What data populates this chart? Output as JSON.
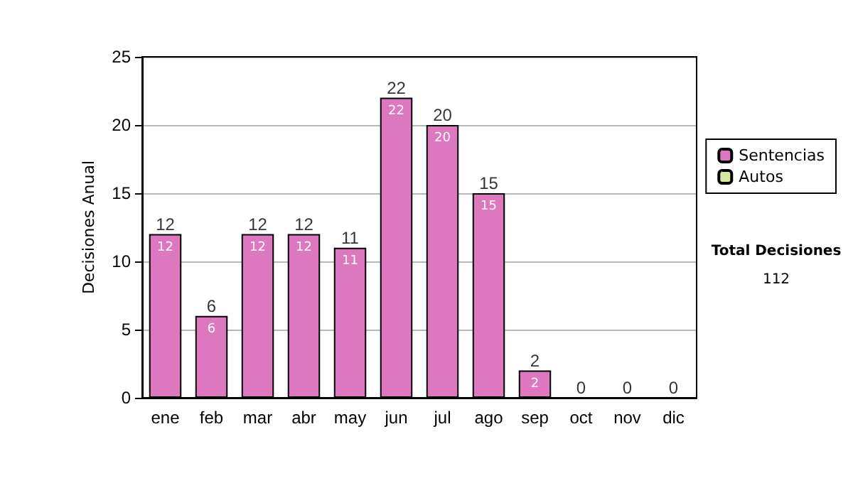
{
  "chart_data": {
    "type": "bar",
    "stacked": true,
    "ylabel": "Decisiones Anual",
    "categories": [
      "ene",
      "feb",
      "mar",
      "abr",
      "may",
      "jun",
      "jul",
      "ago",
      "sep",
      "oct",
      "nov",
      "dic"
    ],
    "series": [
      {
        "name": "Sentencias",
        "color": "#dd77c0",
        "values": [
          12,
          6,
          12,
          12,
          11,
          22,
          20,
          15,
          2,
          0,
          0,
          0
        ],
        "value_labels": [
          "12",
          "6",
          "12",
          "12",
          "11",
          "22",
          "20",
          "15",
          "2",
          null,
          null,
          null
        ]
      },
      {
        "name": "Autos",
        "color": "#d4e8a0",
        "values": [
          0,
          0,
          0,
          0,
          0,
          0,
          0,
          0,
          0,
          0,
          0,
          0
        ]
      }
    ],
    "totals": [
      "12",
      "6",
      "12",
      "12",
      "11",
      "22",
      "20",
      "15",
      "2",
      "0",
      "0",
      "0"
    ],
    "ylim": [
      0,
      25
    ],
    "yticks": [
      0,
      5,
      10,
      15,
      20,
      25
    ],
    "grid": "y",
    "legend": "right",
    "annotations": [
      "Total Decisiones",
      "112"
    ]
  }
}
